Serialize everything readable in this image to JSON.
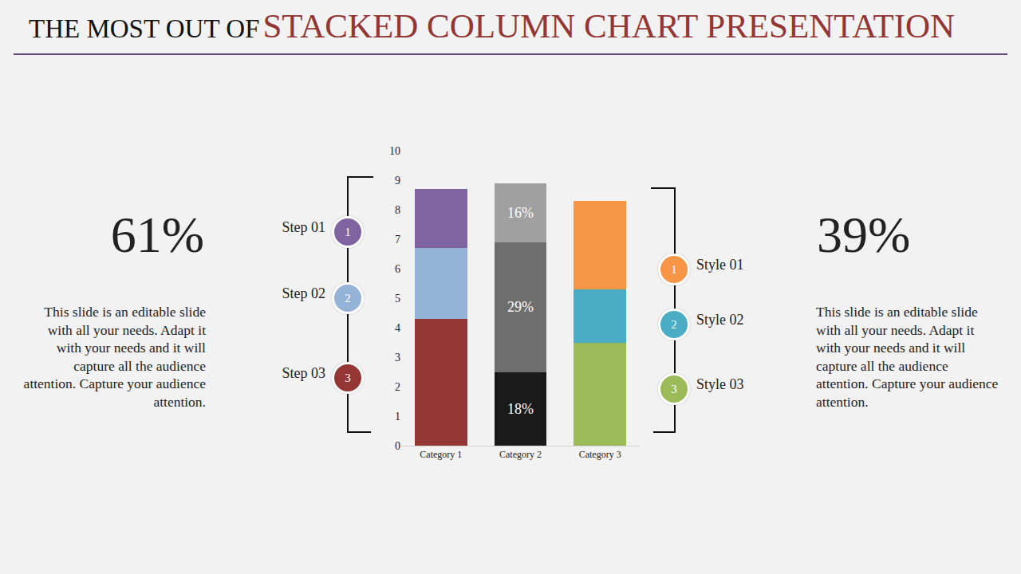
{
  "title": {
    "prefix": "THE MOST OUT OF",
    "highlight": "STACKED COLUMN CHART PRESENTATION"
  },
  "left_panel": {
    "value": "61%",
    "text": "This slide is an editable slide with all your needs. Adapt it with your needs and it will capture all the audience attention. Capture your audience attention."
  },
  "right_panel": {
    "value": "39%",
    "text": "This slide is an editable slide with all your needs. Adapt it with your needs and it will capture all the audience attention. Capture your audience attention."
  },
  "steps": [
    {
      "label": "Step 01",
      "number": "1",
      "color": "#8064a2"
    },
    {
      "label": "Step 02",
      "number": "2",
      "color": "#95b3d7"
    },
    {
      "label": "Step 03",
      "number": "3",
      "color": "#943634"
    }
  ],
  "styles": [
    {
      "label": "Style 01",
      "number": "1",
      "color": "#f79646"
    },
    {
      "label": "Style 02",
      "number": "2",
      "color": "#4bacc6"
    },
    {
      "label": "Style 03",
      "number": "3",
      "color": "#9bbb59"
    }
  ],
  "chart_data": {
    "type": "bar",
    "stacked": true,
    "categories": [
      "Category 1",
      "Category 2",
      "Category 3"
    ],
    "series": [
      {
        "colors": [
          "#943634",
          "#1a1a1a",
          "#9bbb59"
        ],
        "values": [
          4.3,
          2.5,
          3.5
        ]
      },
      {
        "colors": [
          "#95b3d7",
          "#6e6e6e",
          "#4bacc6"
        ],
        "values": [
          2.4,
          4.4,
          1.8
        ]
      },
      {
        "colors": [
          "#8064a2",
          "#a0a0a0",
          "#f79646"
        ],
        "values": [
          2.0,
          2.0,
          3.0
        ]
      }
    ],
    "annotations": [
      {
        "text": "18%",
        "category": "Category 2",
        "series": 0
      },
      {
        "text": "29%",
        "category": "Category 2",
        "series": 1
      },
      {
        "text": "16%",
        "category": "Category 2",
        "series": 2
      }
    ],
    "ylim": [
      0,
      10
    ],
    "yticks": [
      0,
      1,
      2,
      3,
      4,
      5,
      6,
      7,
      8,
      9,
      10
    ],
    "grid": false
  }
}
